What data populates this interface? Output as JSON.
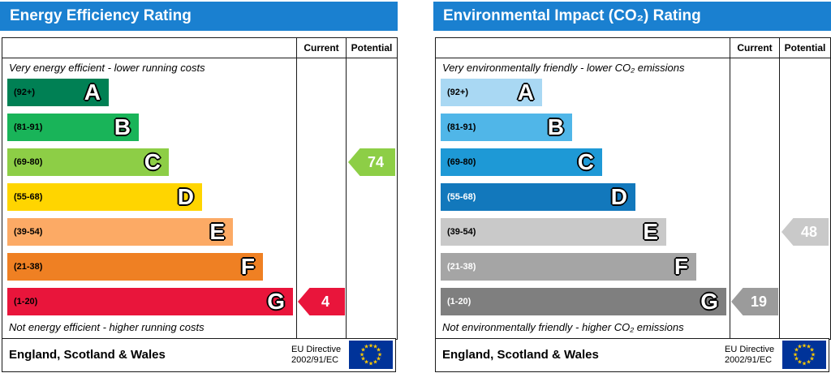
{
  "chart_data": [
    {
      "type": "bar",
      "id": "energy-efficiency",
      "title": "Energy Efficiency Rating",
      "header_color": "#1a80d0",
      "column_headers": [
        "Current",
        "Potential"
      ],
      "top_note": "Very energy efficient - lower running costs",
      "bottom_note": "Not energy efficient - higher running costs",
      "bands": [
        {
          "letter": "A",
          "range_label": "(92+)",
          "min": 92,
          "max": 100,
          "color": "#008054",
          "width_pct": 35,
          "label_color": "#000000"
        },
        {
          "letter": "B",
          "range_label": "(81-91)",
          "min": 81,
          "max": 91,
          "color": "#19b459",
          "width_pct": 45.5,
          "label_color": "#000000"
        },
        {
          "letter": "C",
          "range_label": "(69-80)",
          "min": 69,
          "max": 80,
          "color": "#8dce46",
          "width_pct": 56,
          "label_color": "#000000"
        },
        {
          "letter": "D",
          "range_label": "(55-68)",
          "min": 55,
          "max": 68,
          "color": "#ffd500",
          "width_pct": 67.5,
          "label_color": "#000000"
        },
        {
          "letter": "E",
          "range_label": "(39-54)",
          "min": 39,
          "max": 54,
          "color": "#fcaa65",
          "width_pct": 78,
          "label_color": "#000000"
        },
        {
          "letter": "F",
          "range_label": "(21-38)",
          "min": 21,
          "max": 38,
          "color": "#ef8023",
          "width_pct": 88.5,
          "label_color": "#000000"
        },
        {
          "letter": "G",
          "range_label": "(1-20)",
          "min": 1,
          "max": 20,
          "color": "#e9153b",
          "width_pct": 99,
          "label_color": "#000000"
        }
      ],
      "current": {
        "value": 4,
        "band": "G",
        "row": 6,
        "color": "#e9153b"
      },
      "potential": {
        "value": 74,
        "band": "C",
        "row": 2,
        "color": "#8dce46"
      },
      "footer": {
        "region": "England, Scotland & Wales",
        "directive_line1": "EU Directive",
        "directive_line2": "2002/91/EC",
        "flag_icon": "eu-flag"
      }
    },
    {
      "type": "bar",
      "id": "environmental-impact-co2",
      "title": "Environmental Impact (CO₂) Rating",
      "header_color": "#1a80d0",
      "column_headers": [
        "Current",
        "Potential"
      ],
      "top_note": "Very environmentally friendly - lower CO₂ emissions",
      "bottom_note": "Not environmentally friendly - higher CO₂ emissions",
      "bands": [
        {
          "letter": "A",
          "range_label": "(92+)",
          "min": 92,
          "max": 100,
          "color": "#a9d8f3",
          "width_pct": 35,
          "label_color": "#000000"
        },
        {
          "letter": "B",
          "range_label": "(81-91)",
          "min": 81,
          "max": 91,
          "color": "#50b6e8",
          "width_pct": 45.5,
          "label_color": "#000000"
        },
        {
          "letter": "C",
          "range_label": "(69-80)",
          "min": 69,
          "max": 80,
          "color": "#1e99d6",
          "width_pct": 56,
          "label_color": "#000000"
        },
        {
          "letter": "D",
          "range_label": "(55-68)",
          "min": 55,
          "max": 68,
          "color": "#1278bc",
          "width_pct": 67.5,
          "label_color": "#ffffff"
        },
        {
          "letter": "E",
          "range_label": "(39-54)",
          "min": 39,
          "max": 54,
          "color": "#c9c9c9",
          "width_pct": 78,
          "label_color": "#000000"
        },
        {
          "letter": "F",
          "range_label": "(21-38)",
          "min": 21,
          "max": 38,
          "color": "#a5a5a5",
          "width_pct": 88.5,
          "label_color": "#ffffff"
        },
        {
          "letter": "G",
          "range_label": "(1-20)",
          "min": 1,
          "max": 20,
          "color": "#7f7f7f",
          "width_pct": 99,
          "label_color": "#ffffff"
        }
      ],
      "current": {
        "value": 19,
        "band": "G",
        "row": 6,
        "color": "#9b9b9b"
      },
      "potential": {
        "value": 48,
        "band": "E",
        "row": 4,
        "color": "#c9c9c9"
      },
      "footer": {
        "region": "England, Scotland & Wales",
        "directive_line1": "EU Directive",
        "directive_line2": "2002/91/EC",
        "flag_icon": "eu-flag"
      }
    }
  ],
  "flag_colors": {
    "background": "#003399",
    "stars": "#ffcc00"
  }
}
